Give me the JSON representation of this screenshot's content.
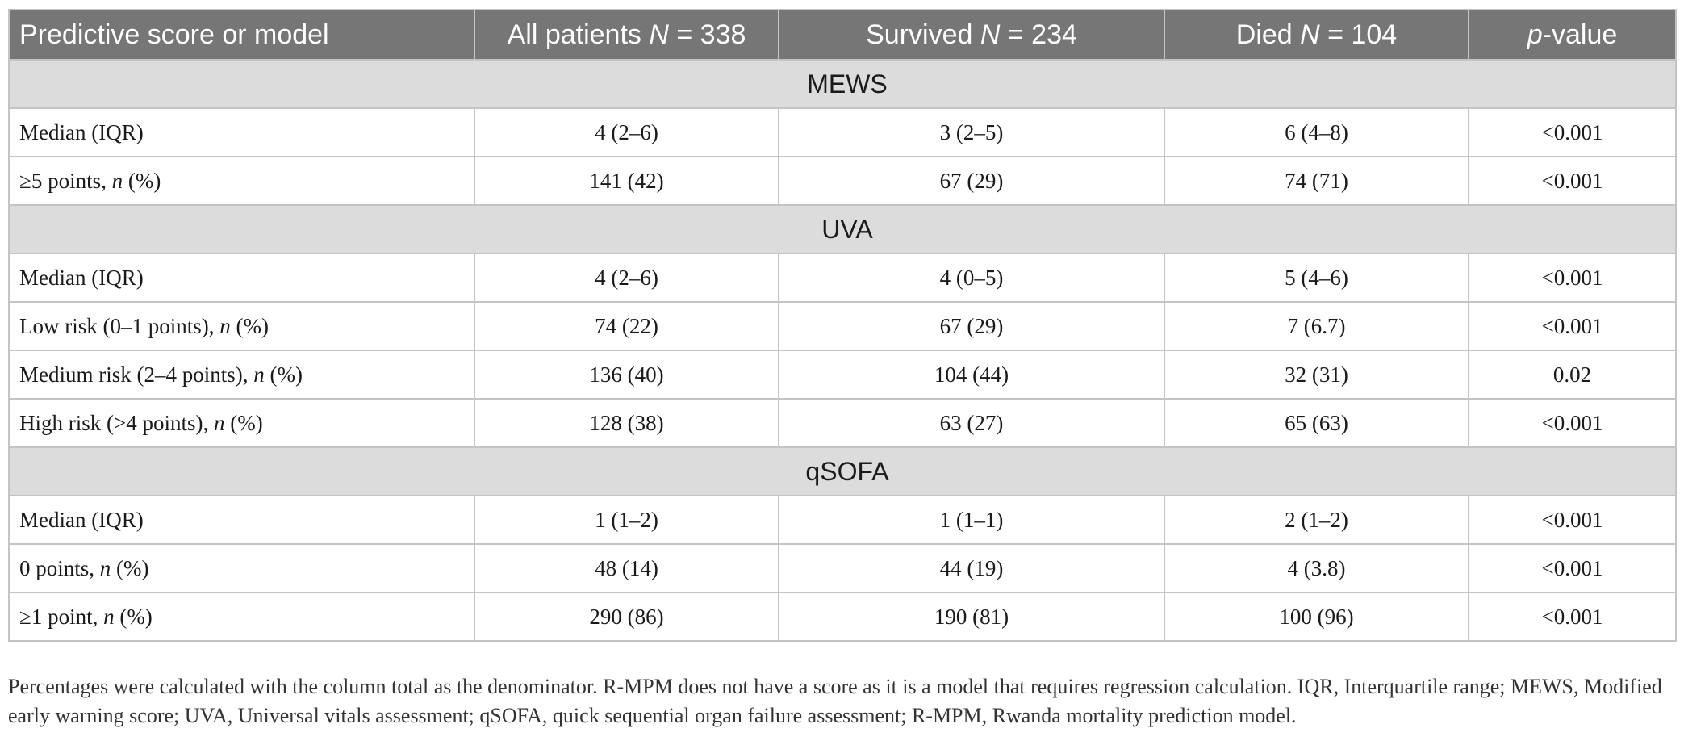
{
  "table": {
    "headers": [
      {
        "text": "Predictive score or model",
        "suffix": ""
      },
      {
        "text": "All patients ",
        "italic": "N",
        "suffix": " = 338"
      },
      {
        "text": "Survived ",
        "italic": "N",
        "suffix": " = 234"
      },
      {
        "text": "Died ",
        "italic": "N",
        "suffix": " = 104"
      },
      {
        "text": "",
        "italic": "p",
        "suffix": "-value"
      }
    ],
    "sections": [
      {
        "title": "MEWS",
        "rows": [
          {
            "label": "Median (IQR)",
            "label_suffix": "",
            "values": [
              "4 (2–6)",
              "3 (2–5)",
              "6 (4–8)",
              "<0.001"
            ]
          },
          {
            "label": "≥5 points, ",
            "label_italic": "n",
            "label_suffix": " (%)",
            "values": [
              "141 (42)",
              "67 (29)",
              "74 (71)",
              "<0.001"
            ]
          }
        ]
      },
      {
        "title": "UVA",
        "rows": [
          {
            "label": "Median (IQR)",
            "label_suffix": "",
            "values": [
              "4 (2–6)",
              "4 (0–5)",
              "5 (4–6)",
              "<0.001"
            ]
          },
          {
            "label": "Low risk (0–1 points), ",
            "label_italic": "n",
            "label_suffix": " (%)",
            "values": [
              "74 (22)",
              "67 (29)",
              "7 (6.7)",
              "<0.001"
            ]
          },
          {
            "label": "Medium risk (2–4 points), ",
            "label_italic": "n",
            "label_suffix": " (%)",
            "values": [
              "136 (40)",
              "104 (44)",
              "32 (31)",
              "0.02"
            ]
          },
          {
            "label": "High risk (>4 points), ",
            "label_italic": "n",
            "label_suffix": " (%)",
            "values": [
              "128 (38)",
              "63 (27)",
              "65 (63)",
              "<0.001"
            ]
          }
        ]
      },
      {
        "title": "qSOFA",
        "rows": [
          {
            "label": "Median (IQR)",
            "label_suffix": "",
            "values": [
              "1 (1–2)",
              "1 (1–1)",
              "2 (1–2)",
              "<0.001"
            ]
          },
          {
            "label": "0 points, ",
            "label_italic": "n",
            "label_suffix": " (%)",
            "values": [
              "48 (14)",
              "44 (19)",
              "4 (3.8)",
              "<0.001"
            ]
          },
          {
            "label": "≥1 point, ",
            "label_italic": "n",
            "label_suffix": " (%)",
            "values": [
              "290 (86)",
              "190 (81)",
              "100 (96)",
              "<0.001"
            ]
          }
        ]
      }
    ]
  },
  "footnote": "Percentages were calculated with the column total as the denominator. R-MPM does not have a score as it is a model that requires regression calculation. IQR, Interquartile range; MEWS, Modified early warning score; UVA, Universal vitals assessment; qSOFA, quick sequential organ failure assessment; R-MPM, Rwanda mortality prediction model.",
  "colors": {
    "header_bg": "#767676",
    "section_bg": "#dcdcdc",
    "border": "#c4c4c4"
  }
}
